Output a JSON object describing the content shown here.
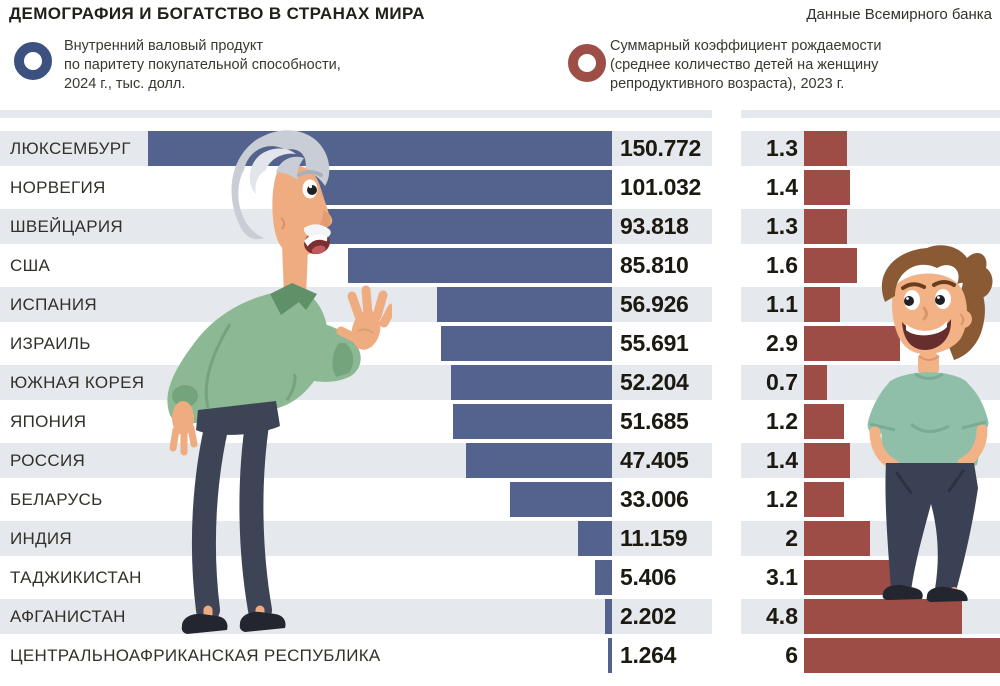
{
  "title": "ДЕМОГРАФИЯ И БОГАТСТВО В СТРАНАХ МИРА",
  "source": "Данные Всемирного банка",
  "legend": {
    "gdp": {
      "lines": [
        "Внутренний валовый продукт",
        "по паритету покупательной способности,",
        "2024 г., тыс. долл."
      ],
      "ring_color": "#3d5180"
    },
    "fertility": {
      "lines": [
        "Суммарный коэффициент рождаемости",
        "(среднее количество детей на женщину",
        "репродуктивного возраста), 2023 г."
      ],
      "ring_color": "#9d4f47"
    }
  },
  "chart_data": {
    "type": "bar",
    "orientation": "horizontal",
    "categories": [
      "ЛЮКСЕМБУРГ",
      "НОРВЕГИЯ",
      "ШВЕЙЦАРИЯ",
      "США",
      "ИСПАНИЯ",
      "ИЗРАИЛЬ",
      "ЮЖНАЯ КОРЕЯ",
      "ЯПОНИЯ",
      "РОССИЯ",
      "БЕЛАРУСЬ",
      "ИНДИЯ",
      "ТАДЖИКИСТАН",
      "АФГАНИСТАН",
      "ЦЕНТРАЛЬНОАФРИКАНСКАЯ РЕСПУБЛИКА"
    ],
    "series": [
      {
        "name": "Внутренний валовый продукт по паритету покупательной способности, 2024 г., тыс. долл.",
        "color": "#54638d",
        "bar_alignment": "right-edge",
        "values": [
          150.772,
          101.032,
          93.818,
          85.81,
          56.926,
          55.691,
          52.204,
          51.685,
          47.405,
          33.006,
          11.159,
          5.406,
          2.202,
          1.264
        ],
        "labels": [
          "150.772",
          "101.032",
          "93.818",
          "85.810",
          "56.926",
          "55.691",
          "52.204",
          "51.685",
          "47.405",
          "33.006",
          "11.159",
          "5.406",
          "2.202",
          "1.264"
        ]
      },
      {
        "name": "Суммарный коэффициент рождаемости (среднее количество детей на женщину репродуктивного возраста), 2023 г.",
        "color": "#9e4c46",
        "bar_alignment": "left-edge",
        "values": [
          1.3,
          1.4,
          1.3,
          1.6,
          1.1,
          2.9,
          0.7,
          1.2,
          1.4,
          1.2,
          2,
          3.1,
          4.8,
          6
        ],
        "labels": [
          "1.3",
          "1.4",
          "1.3",
          "1.6",
          "1.1",
          "2.9",
          "0.7",
          "1.2",
          "1.4",
          "1.2",
          "2",
          "3.1",
          "4.8",
          "6"
        ]
      }
    ],
    "gridlines": false,
    "zebra_stripes": true,
    "zebra_color": "#e5e8ec"
  }
}
